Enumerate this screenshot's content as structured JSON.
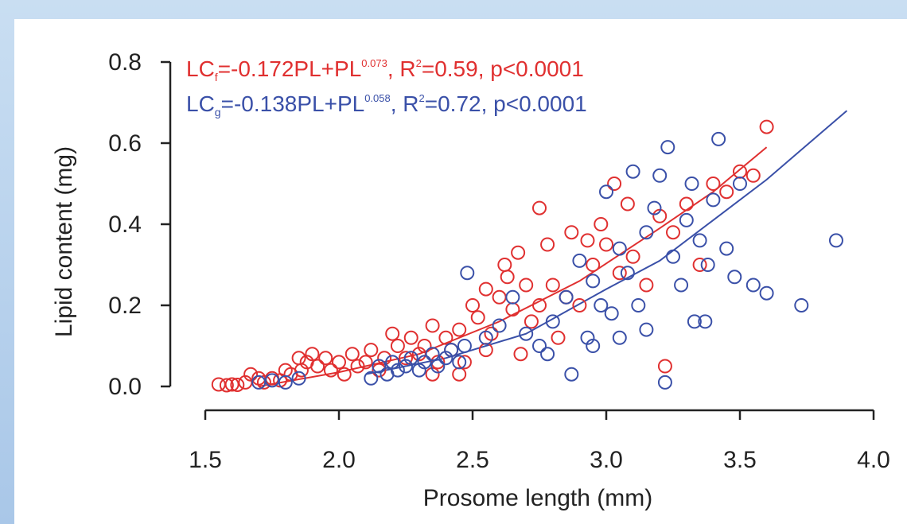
{
  "chart_data": {
    "type": "scatter",
    "xlabel": "Prosome length (mm)",
    "ylabel": "Lipid content (mg)",
    "xlim": [
      1.5,
      4.0
    ],
    "ylim": [
      0.0,
      0.8
    ],
    "xticks": [
      "1.5",
      "2.0",
      "2.5",
      "3.0",
      "3.5",
      "4.0"
    ],
    "yticks": [
      "0.0",
      "0.2",
      "0.4",
      "0.6",
      "0.8"
    ],
    "grid": false,
    "annotations": [
      {
        "color": "#e03030",
        "base": "LC",
        "subscript": "f",
        "equation": "=-0.172PL+PL",
        "superscript": "0.073",
        "stats": ", R",
        "r2_sup": "2",
        "rest": "=0.59, p<0.0001"
      },
      {
        "color": "#3a50a8",
        "base": "LC",
        "subscript": "g",
        "equation": "=-0.138PL+PL",
        "superscript": "0.058",
        "stats": ", R",
        "r2_sup": "2",
        "rest": "=0.72, p<0.0001"
      }
    ],
    "series": [
      {
        "color": "#e03030",
        "marker": "open-circle",
        "fit_curve": [
          [
            1.7,
            0.0
          ],
          [
            2.0,
            0.035
          ],
          [
            2.3,
            0.08
          ],
          [
            2.6,
            0.16
          ],
          [
            2.9,
            0.26
          ],
          [
            3.2,
            0.39
          ],
          [
            3.4,
            0.48
          ],
          [
            3.6,
            0.59
          ]
        ],
        "points": [
          [
            1.55,
            0.005
          ],
          [
            1.58,
            0.003
          ],
          [
            1.6,
            0.005
          ],
          [
            1.62,
            0.004
          ],
          [
            1.65,
            0.01
          ],
          [
            1.67,
            0.03
          ],
          [
            1.7,
            0.02
          ],
          [
            1.72,
            0.01
          ],
          [
            1.75,
            0.02
          ],
          [
            1.78,
            0.015
          ],
          [
            1.8,
            0.04
          ],
          [
            1.82,
            0.03
          ],
          [
            1.85,
            0.07
          ],
          [
            1.86,
            0.04
          ],
          [
            1.88,
            0.06
          ],
          [
            1.9,
            0.08
          ],
          [
            1.92,
            0.05
          ],
          [
            1.95,
            0.07
          ],
          [
            1.97,
            0.04
          ],
          [
            2.0,
            0.06
          ],
          [
            2.02,
            0.03
          ],
          [
            2.05,
            0.08
          ],
          [
            2.07,
            0.05
          ],
          [
            2.1,
            0.06
          ],
          [
            2.12,
            0.09
          ],
          [
            2.15,
            0.04
          ],
          [
            2.17,
            0.07
          ],
          [
            2.2,
            0.13
          ],
          [
            2.22,
            0.1
          ],
          [
            2.25,
            0.07
          ],
          [
            2.27,
            0.12
          ],
          [
            2.3,
            0.08
          ],
          [
            2.32,
            0.1
          ],
          [
            2.35,
            0.15
          ],
          [
            2.37,
            0.06
          ],
          [
            2.4,
            0.12
          ],
          [
            2.42,
            0.09
          ],
          [
            2.45,
            0.14
          ],
          [
            2.47,
            0.06
          ],
          [
            2.5,
            0.2
          ],
          [
            2.52,
            0.17
          ],
          [
            2.55,
            0.24
          ],
          [
            2.57,
            0.13
          ],
          [
            2.6,
            0.22
          ],
          [
            2.62,
            0.3
          ],
          [
            2.63,
            0.27
          ],
          [
            2.65,
            0.19
          ],
          [
            2.67,
            0.33
          ],
          [
            2.68,
            0.08
          ],
          [
            2.7,
            0.25
          ],
          [
            2.72,
            0.16
          ],
          [
            2.75,
            0.2
          ],
          [
            2.78,
            0.35
          ],
          [
            2.8,
            0.25
          ],
          [
            2.82,
            0.12
          ],
          [
            2.85,
            0.22
          ],
          [
            2.87,
            0.38
          ],
          [
            2.9,
            0.2
          ],
          [
            2.93,
            0.36
          ],
          [
            2.95,
            0.3
          ],
          [
            2.98,
            0.4
          ],
          [
            3.0,
            0.35
          ],
          [
            3.03,
            0.5
          ],
          [
            3.05,
            0.28
          ],
          [
            3.08,
            0.45
          ],
          [
            3.1,
            0.32
          ],
          [
            3.15,
            0.25
          ],
          [
            3.2,
            0.42
          ],
          [
            3.22,
            0.05
          ],
          [
            3.25,
            0.38
          ],
          [
            3.3,
            0.45
          ],
          [
            3.35,
            0.3
          ],
          [
            3.4,
            0.5
          ],
          [
            3.45,
            0.48
          ],
          [
            3.5,
            0.53
          ],
          [
            3.55,
            0.52
          ],
          [
            3.6,
            0.64
          ],
          [
            2.75,
            0.44
          ],
          [
            2.55,
            0.09
          ],
          [
            2.45,
            0.03
          ],
          [
            2.35,
            0.03
          ]
        ]
      },
      {
        "color": "#3a50a8",
        "marker": "open-circle",
        "fit_curve": [
          [
            2.1,
            0.03
          ],
          [
            2.4,
            0.07
          ],
          [
            2.7,
            0.13
          ],
          [
            3.0,
            0.24
          ],
          [
            3.2,
            0.31
          ],
          [
            3.4,
            0.41
          ],
          [
            3.6,
            0.51
          ],
          [
            3.9,
            0.68
          ]
        ],
        "points": [
          [
            1.7,
            0.01
          ],
          [
            1.75,
            0.015
          ],
          [
            1.8,
            0.01
          ],
          [
            1.85,
            0.02
          ],
          [
            2.12,
            0.02
          ],
          [
            2.15,
            0.05
          ],
          [
            2.18,
            0.03
          ],
          [
            2.2,
            0.06
          ],
          [
            2.22,
            0.04
          ],
          [
            2.25,
            0.05
          ],
          [
            2.27,
            0.07
          ],
          [
            2.3,
            0.04
          ],
          [
            2.32,
            0.06
          ],
          [
            2.35,
            0.08
          ],
          [
            2.37,
            0.05
          ],
          [
            2.4,
            0.07
          ],
          [
            2.42,
            0.09
          ],
          [
            2.45,
            0.06
          ],
          [
            2.47,
            0.1
          ],
          [
            2.48,
            0.28
          ],
          [
            2.55,
            0.12
          ],
          [
            2.6,
            0.15
          ],
          [
            2.65,
            0.22
          ],
          [
            2.7,
            0.13
          ],
          [
            2.75,
            0.1
          ],
          [
            2.8,
            0.16
          ],
          [
            2.85,
            0.22
          ],
          [
            2.87,
            0.03
          ],
          [
            2.9,
            0.31
          ],
          [
            2.93,
            0.12
          ],
          [
            2.95,
            0.26
          ],
          [
            2.98,
            0.2
          ],
          [
            3.0,
            0.48
          ],
          [
            3.02,
            0.18
          ],
          [
            3.05,
            0.34
          ],
          [
            3.08,
            0.28
          ],
          [
            3.1,
            0.53
          ],
          [
            3.12,
            0.2
          ],
          [
            3.15,
            0.38
          ],
          [
            3.18,
            0.44
          ],
          [
            3.2,
            0.52
          ],
          [
            3.22,
            0.01
          ],
          [
            3.23,
            0.59
          ],
          [
            3.25,
            0.32
          ],
          [
            3.28,
            0.25
          ],
          [
            3.3,
            0.41
          ],
          [
            3.33,
            0.16
          ],
          [
            3.35,
            0.36
          ],
          [
            3.37,
            0.16
          ],
          [
            3.4,
            0.46
          ],
          [
            3.42,
            0.61
          ],
          [
            3.45,
            0.34
          ],
          [
            3.48,
            0.27
          ],
          [
            3.5,
            0.5
          ],
          [
            3.55,
            0.25
          ],
          [
            3.6,
            0.23
          ],
          [
            3.73,
            0.2
          ],
          [
            3.86,
            0.36
          ],
          [
            3.38,
            0.3
          ],
          [
            3.32,
            0.5
          ],
          [
            3.15,
            0.14
          ],
          [
            3.05,
            0.12
          ],
          [
            2.95,
            0.1
          ],
          [
            2.78,
            0.08
          ]
        ]
      }
    ]
  }
}
